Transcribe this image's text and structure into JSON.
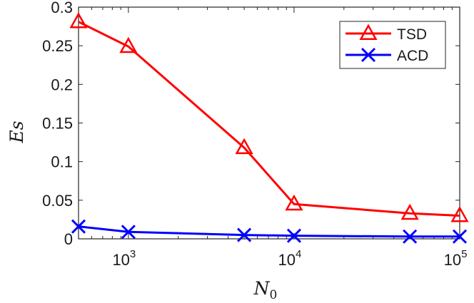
{
  "chart_data": {
    "type": "line",
    "xscale": "log",
    "xlim": [
      500,
      100000
    ],
    "ylim": [
      0,
      0.3
    ],
    "xlabel": "N",
    "xlabel_sub": "0",
    "ylabel": "Es",
    "yticks": [
      "0",
      "0.05",
      "0.1",
      "0.15",
      "0.2",
      "0.25",
      "0.3"
    ],
    "xticks": [
      {
        "value": 1000,
        "base": "10",
        "exp": "3"
      },
      {
        "value": 10000,
        "base": "10",
        "exp": "4"
      },
      {
        "value": 100000,
        "base": "10",
        "exp": "5"
      }
    ],
    "grid": false,
    "legend_position": "top-right",
    "x": [
      500,
      1000,
      5000,
      10000,
      50000,
      100000
    ],
    "series": [
      {
        "name": "TSD",
        "color": "#ff0000",
        "marker": "triangle",
        "values": [
          0.281,
          0.249,
          0.118,
          0.045,
          0.033,
          0.03
        ]
      },
      {
        "name": "ACD",
        "color": "#0000ff",
        "marker": "x",
        "values": [
          0.016,
          0.009,
          0.005,
          0.004,
          0.003,
          0.003
        ]
      }
    ]
  }
}
